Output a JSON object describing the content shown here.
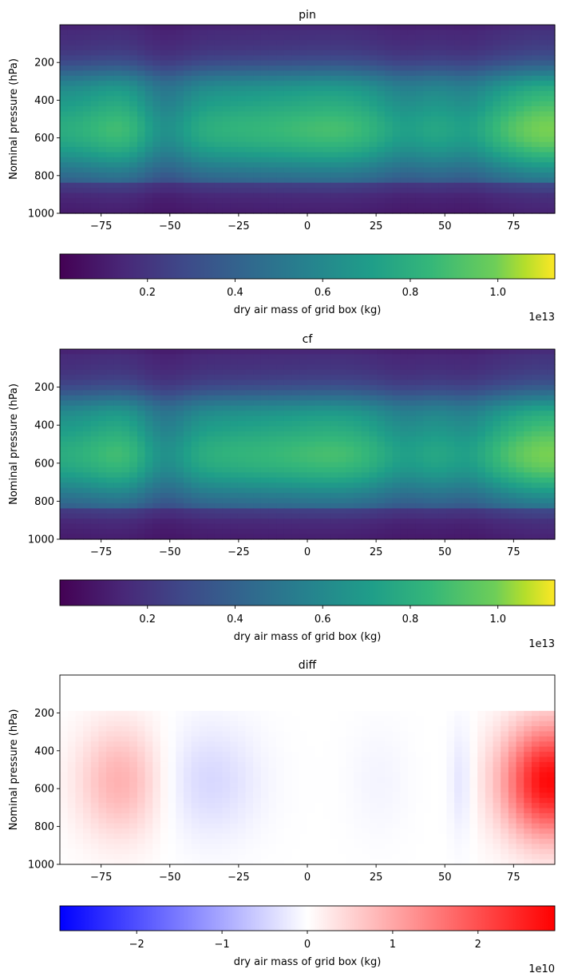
{
  "chart_data": [
    {
      "type": "heatmap",
      "title": "pin",
      "ylabel": "Nominal pressure (hPa)",
      "xlim": [
        -90,
        90
      ],
      "ylim": [
        1000,
        0
      ],
      "xticks": [
        -75,
        -50,
        -25,
        0,
        25,
        50,
        75
      ],
      "yticks": [
        200,
        400,
        600,
        800,
        1000
      ],
      "xtick_labels": [
        "−75",
        "−50",
        "−25",
        "0",
        "25",
        "50",
        "75"
      ],
      "ytick_labels": [
        "200",
        "400",
        "600",
        "800",
        "1000"
      ],
      "colormap": "viridis",
      "colorbar": {
        "label": "dry air mass of grid box (kg)",
        "range": [
          0.0,
          1.13
        ],
        "ticks": [
          0.2,
          0.4,
          0.6,
          0.8,
          1.0
        ],
        "tick_labels": [
          "0.2",
          "0.4",
          "0.6",
          "0.8",
          "1.0"
        ],
        "offset": "1e13"
      }
    },
    {
      "type": "heatmap",
      "title": "cf",
      "ylabel": "Nominal pressure (hPa)",
      "xlim": [
        -90,
        90
      ],
      "ylim": [
        1000,
        0
      ],
      "xticks": [
        -75,
        -50,
        -25,
        0,
        25,
        50,
        75
      ],
      "yticks": [
        200,
        400,
        600,
        800,
        1000
      ],
      "xtick_labels": [
        "−75",
        "−50",
        "−25",
        "0",
        "25",
        "50",
        "75"
      ],
      "ytick_labels": [
        "200",
        "400",
        "600",
        "800",
        "1000"
      ],
      "colormap": "viridis",
      "colorbar": {
        "label": "dry air mass of grid box (kg)",
        "range": [
          0.0,
          1.13
        ],
        "ticks": [
          0.2,
          0.4,
          0.6,
          0.8,
          1.0
        ],
        "tick_labels": [
          "0.2",
          "0.4",
          "0.6",
          "0.8",
          "1.0"
        ],
        "offset": "1e13"
      }
    },
    {
      "type": "heatmap",
      "title": "diff",
      "ylabel": "Nominal pressure (hPa)",
      "xlim": [
        -90,
        90
      ],
      "ylim": [
        1000,
        0
      ],
      "xticks": [
        -75,
        -50,
        -25,
        0,
        25,
        50,
        75
      ],
      "yticks": [
        200,
        400,
        600,
        800,
        1000
      ],
      "xtick_labels": [
        "−75",
        "−50",
        "−25",
        "0",
        "25",
        "50",
        "75"
      ],
      "ytick_labels": [
        "200",
        "400",
        "600",
        "800",
        "1000"
      ],
      "colormap": "bwr",
      "colorbar": {
        "label": "dry air mass of grid box (kg)",
        "range": [
          -2.9,
          2.9
        ],
        "ticks": [
          -2,
          -1,
          0,
          1,
          2
        ],
        "tick_labels": [
          "−2",
          "−1",
          "0",
          "1",
          "2"
        ],
        "offset": "1e10"
      }
    }
  ]
}
